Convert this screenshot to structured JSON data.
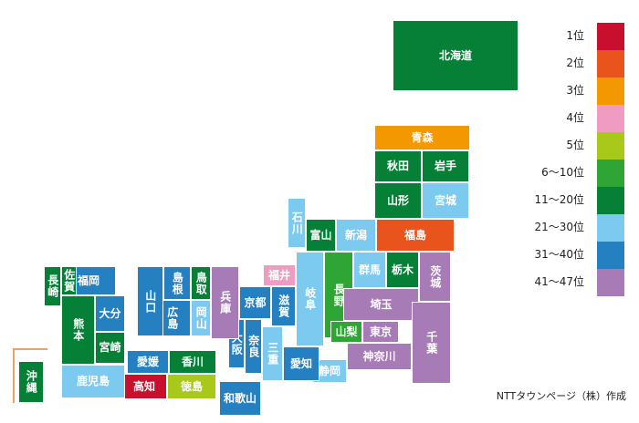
{
  "colors": {
    "rank_1": "#c8102e",
    "rank_2": "#e8541c",
    "rank_3": "#f39800",
    "rank_4": "#ef9bc2",
    "rank_5": "#a9c91a",
    "rank_6_10": "#2fa535",
    "rank_11_20": "#068037",
    "rank_21_30": "#7ccaf0",
    "rank_31_40": "#2580c2",
    "rank_41_47": "#a67bb6"
  },
  "legend": [
    {
      "label": "1位",
      "color_key": "rank_1"
    },
    {
      "label": "2位",
      "color_key": "rank_2"
    },
    {
      "label": "3位",
      "color_key": "rank_3"
    },
    {
      "label": "4位",
      "color_key": "rank_4"
    },
    {
      "label": "5位",
      "color_key": "rank_5"
    },
    {
      "label": "6〜10位",
      "color_key": "rank_6_10"
    },
    {
      "label": "11〜20位",
      "color_key": "rank_11_20"
    },
    {
      "label": "21〜30位",
      "color_key": "rank_21_30"
    },
    {
      "label": "31〜40位",
      "color_key": "rank_31_40"
    },
    {
      "label": "41〜47位",
      "color_key": "rank_41_47"
    }
  ],
  "credit": "NTTタウンページ（株）作成",
  "prefectures": [
    {
      "id": "hokkaido",
      "name": "北海道",
      "rank_group": "rank_11_20"
    },
    {
      "id": "aomori",
      "name": "青森",
      "rank_group": "rank_3"
    },
    {
      "id": "akita",
      "name": "秋田",
      "rank_group": "rank_11_20"
    },
    {
      "id": "iwate",
      "name": "岩手",
      "rank_group": "rank_11_20"
    },
    {
      "id": "yamagata",
      "name": "山形",
      "rank_group": "rank_11_20"
    },
    {
      "id": "miyagi",
      "name": "宮城",
      "rank_group": "rank_21_30"
    },
    {
      "id": "fukushima",
      "name": "福島",
      "rank_group": "rank_2"
    },
    {
      "id": "niigata",
      "name": "新潟",
      "rank_group": "rank_21_30"
    },
    {
      "id": "ishikawa",
      "name": "石川",
      "rank_group": "rank_21_30"
    },
    {
      "id": "toyama",
      "name": "富山",
      "rank_group": "rank_11_20"
    },
    {
      "id": "fukui",
      "name": "福井",
      "rank_group": "rank_4"
    },
    {
      "id": "gunma",
      "name": "群馬",
      "rank_group": "rank_21_30"
    },
    {
      "id": "tochigi",
      "name": "栃木",
      "rank_group": "rank_11_20"
    },
    {
      "id": "ibaraki",
      "name": "茨城",
      "rank_group": "rank_41_47"
    },
    {
      "id": "nagano",
      "name": "長野",
      "rank_group": "rank_6_10"
    },
    {
      "id": "gifu",
      "name": "岐阜",
      "rank_group": "rank_21_30"
    },
    {
      "id": "saitama",
      "name": "埼玉",
      "rank_group": "rank_41_47"
    },
    {
      "id": "chiba",
      "name": "千葉",
      "rank_group": "rank_41_47"
    },
    {
      "id": "tokyo",
      "name": "東京",
      "rank_group": "rank_41_47"
    },
    {
      "id": "kanagawa",
      "name": "神奈川",
      "rank_group": "rank_41_47"
    },
    {
      "id": "yamanashi",
      "name": "山梨",
      "rank_group": "rank_6_10"
    },
    {
      "id": "shizuoka",
      "name": "静岡",
      "rank_group": "rank_21_30"
    },
    {
      "id": "aichi",
      "name": "愛知",
      "rank_group": "rank_31_40"
    },
    {
      "id": "shiga",
      "name": "滋賀",
      "rank_group": "rank_31_40"
    },
    {
      "id": "mie",
      "name": "三重",
      "rank_group": "rank_21_30"
    },
    {
      "id": "kyoto",
      "name": "京都",
      "rank_group": "rank_31_40"
    },
    {
      "id": "nara",
      "name": "奈良",
      "rank_group": "rank_31_40"
    },
    {
      "id": "osaka",
      "name": "大阪",
      "rank_group": "rank_31_40"
    },
    {
      "id": "wakayama",
      "name": "和歌山",
      "rank_group": "rank_31_40"
    },
    {
      "id": "hyogo",
      "name": "兵庫",
      "rank_group": "rank_41_47"
    },
    {
      "id": "tottori",
      "name": "鳥取",
      "rank_group": "rank_11_20"
    },
    {
      "id": "okayama",
      "name": "岡山",
      "rank_group": "rank_21_30"
    },
    {
      "id": "shimane",
      "name": "島根",
      "rank_group": "rank_31_40"
    },
    {
      "id": "hiroshima",
      "name": "広島",
      "rank_group": "rank_31_40"
    },
    {
      "id": "yamaguchi",
      "name": "山口",
      "rank_group": "rank_31_40"
    },
    {
      "id": "ehime",
      "name": "愛媛",
      "rank_group": "rank_31_40"
    },
    {
      "id": "kagawa",
      "name": "香川",
      "rank_group": "rank_11_20"
    },
    {
      "id": "kochi",
      "name": "高知",
      "rank_group": "rank_1"
    },
    {
      "id": "tokushima",
      "name": "徳島",
      "rank_group": "rank_5"
    },
    {
      "id": "fukuoka",
      "name": "福岡",
      "rank_group": "rank_31_40"
    },
    {
      "id": "saga",
      "name": "佐賀",
      "rank_group": "rank_11_20"
    },
    {
      "id": "nagasaki",
      "name": "長崎",
      "rank_group": "rank_11_20"
    },
    {
      "id": "oita",
      "name": "大分",
      "rank_group": "rank_31_40"
    },
    {
      "id": "kumamoto",
      "name": "熊本",
      "rank_group": "rank_11_20"
    },
    {
      "id": "miyazaki",
      "name": "宮崎",
      "rank_group": "rank_11_20"
    },
    {
      "id": "kagoshima",
      "name": "鹿児島",
      "rank_group": "rank_21_30"
    },
    {
      "id": "okinawa",
      "name": "沖縄",
      "rank_group": "rank_11_20"
    }
  ]
}
